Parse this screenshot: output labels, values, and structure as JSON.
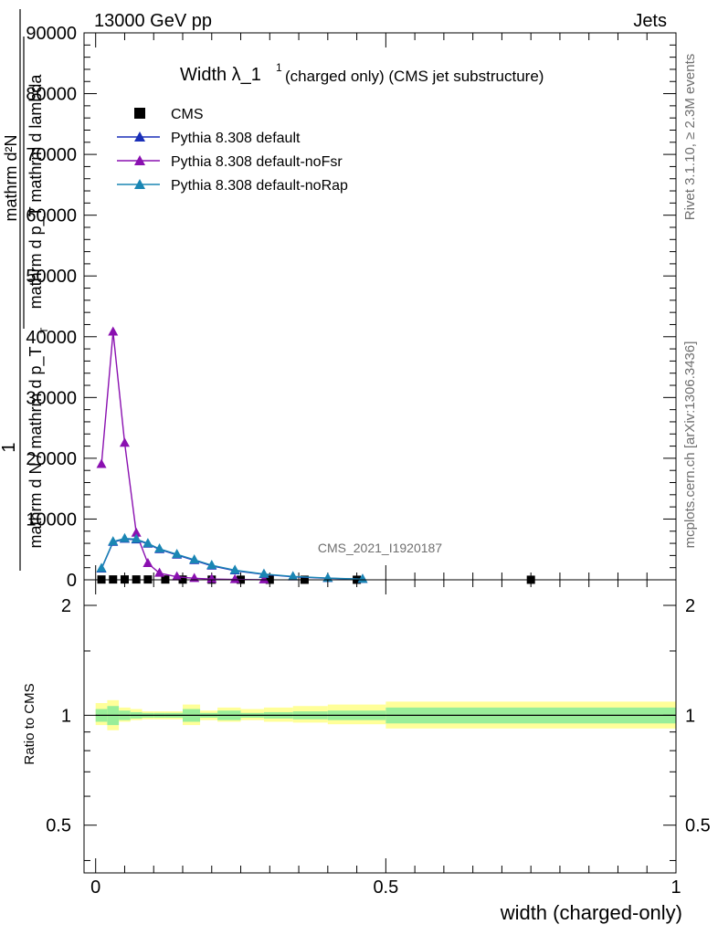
{
  "header": {
    "left": "13000 GeV pp",
    "right": "Jets"
  },
  "side_labels": {
    "rivet": "Rivet 3.1.10, ≥ 2.3M events",
    "mcplots": "mcplots.cern.ch [arXiv:1306.3436]"
  },
  "watermark": "CMS_2021_I1920187",
  "colors": {
    "cms": "#000000",
    "default": "#1a2fb8",
    "noFsr": "#8a10b0",
    "noRap": "#1a86b4",
    "band_inner": "#99ee99",
    "band_outer": "#ffff99"
  },
  "chart_data": [
    {
      "type": "line",
      "title_main": "Width λ_1",
      "title_sup": "1",
      "title_rest": "(charged only) (CMS jet substructure)",
      "ylabel_num": "1",
      "ylabel_den": "mathrm d N / mathrm d p_T",
      "ylabel_frac_num": "mathrm d²N",
      "ylabel_frac_den": "mathrm d p_T mathrm d lambda",
      "ylabel_sub": "T",
      "xlim": [
        -0.02,
        1.0
      ],
      "ylim": [
        0,
        90000
      ],
      "yticks": [
        0,
        10000,
        20000,
        30000,
        40000,
        50000,
        60000,
        70000,
        80000,
        90000
      ],
      "ytick_labels": [
        "0",
        "10000",
        "20000",
        "30000",
        "40000",
        "50000",
        "60000",
        "70000",
        "80000",
        "90000"
      ],
      "legend_position": "top-left",
      "series": [
        {
          "name": "CMS",
          "style": "marker",
          "x": [
            0.01,
            0.03,
            0.05,
            0.07,
            0.09,
            0.12,
            0.15,
            0.2,
            0.25,
            0.3,
            0.36,
            0.45,
            0.75
          ],
          "y": [
            50,
            60,
            60,
            60,
            60,
            50,
            40,
            30,
            20,
            10,
            10,
            10,
            10
          ]
        },
        {
          "name": "Pythia 8.308 default",
          "style": "triangle",
          "x": [
            0.01,
            0.03,
            0.05,
            0.07,
            0.09,
            0.11,
            0.14,
            0.17,
            0.2,
            0.24,
            0.29,
            0.34,
            0.4,
            0.46
          ],
          "y": [
            1800,
            6200,
            6700,
            6600,
            5900,
            5000,
            4100,
            3200,
            2300,
            1500,
            900,
            500,
            250,
            100
          ]
        },
        {
          "name": "Pythia 8.308 default-noFsr",
          "style": "triangle",
          "x": [
            0.01,
            0.03,
            0.05,
            0.07,
            0.09,
            0.11,
            0.14,
            0.17,
            0.2,
            0.24,
            0.29
          ],
          "y": [
            19000,
            40800,
            22500,
            7700,
            2700,
            1100,
            500,
            250,
            120,
            60,
            20
          ]
        },
        {
          "name": "Pythia 8.308 default-noRap",
          "style": "triangle",
          "x": [
            0.01,
            0.03,
            0.05,
            0.07,
            0.09,
            0.11,
            0.14,
            0.17,
            0.2,
            0.24,
            0.29,
            0.34,
            0.4,
            0.46
          ],
          "y": [
            1900,
            6300,
            6800,
            6700,
            6000,
            5100,
            4200,
            3300,
            2400,
            1600,
            950,
            550,
            280,
            110
          ]
        }
      ]
    },
    {
      "type": "area",
      "ylabel": "Ratio to CMS",
      "xlabel": "width (charged-only)",
      "xlim": [
        -0.02,
        1.0
      ],
      "ylim": [
        0.37,
        2.35
      ],
      "log_scale_y": true,
      "yticks": [
        0.5,
        1,
        2
      ],
      "ytick_labels": [
        "0.5",
        "1",
        "2"
      ],
      "xticks": [
        0,
        0.5,
        1
      ],
      "xtick_labels": [
        "0",
        "0.5",
        "1"
      ],
      "reference": 1,
      "bins": [
        0,
        0.02,
        0.04,
        0.06,
        0.08,
        0.1,
        0.12,
        0.15,
        0.18,
        0.21,
        0.25,
        0.29,
        0.34,
        0.4,
        0.5,
        1.0
      ],
      "band_inner": [
        [
          0.96,
          1.04
        ],
        [
          0.94,
          1.06
        ],
        [
          0.97,
          1.03
        ],
        [
          0.98,
          1.02
        ],
        [
          0.985,
          1.015
        ],
        [
          0.985,
          1.015
        ],
        [
          0.985,
          1.015
        ],
        [
          0.96,
          1.04
        ],
        [
          0.985,
          1.015
        ],
        [
          0.97,
          1.03
        ],
        [
          0.985,
          1.015
        ],
        [
          0.98,
          1.02
        ],
        [
          0.975,
          1.025
        ],
        [
          0.97,
          1.03
        ],
        [
          0.95,
          1.05
        ]
      ],
      "band_outer": [
        [
          0.94,
          1.08
        ],
        [
          0.91,
          1.1
        ],
        [
          0.96,
          1.05
        ],
        [
          0.97,
          1.04
        ],
        [
          0.975,
          1.025
        ],
        [
          0.975,
          1.025
        ],
        [
          0.975,
          1.025
        ],
        [
          0.94,
          1.07
        ],
        [
          0.97,
          1.03
        ],
        [
          0.96,
          1.05
        ],
        [
          0.97,
          1.04
        ],
        [
          0.96,
          1.05
        ],
        [
          0.955,
          1.06
        ],
        [
          0.945,
          1.07
        ],
        [
          0.92,
          1.09
        ]
      ]
    }
  ]
}
